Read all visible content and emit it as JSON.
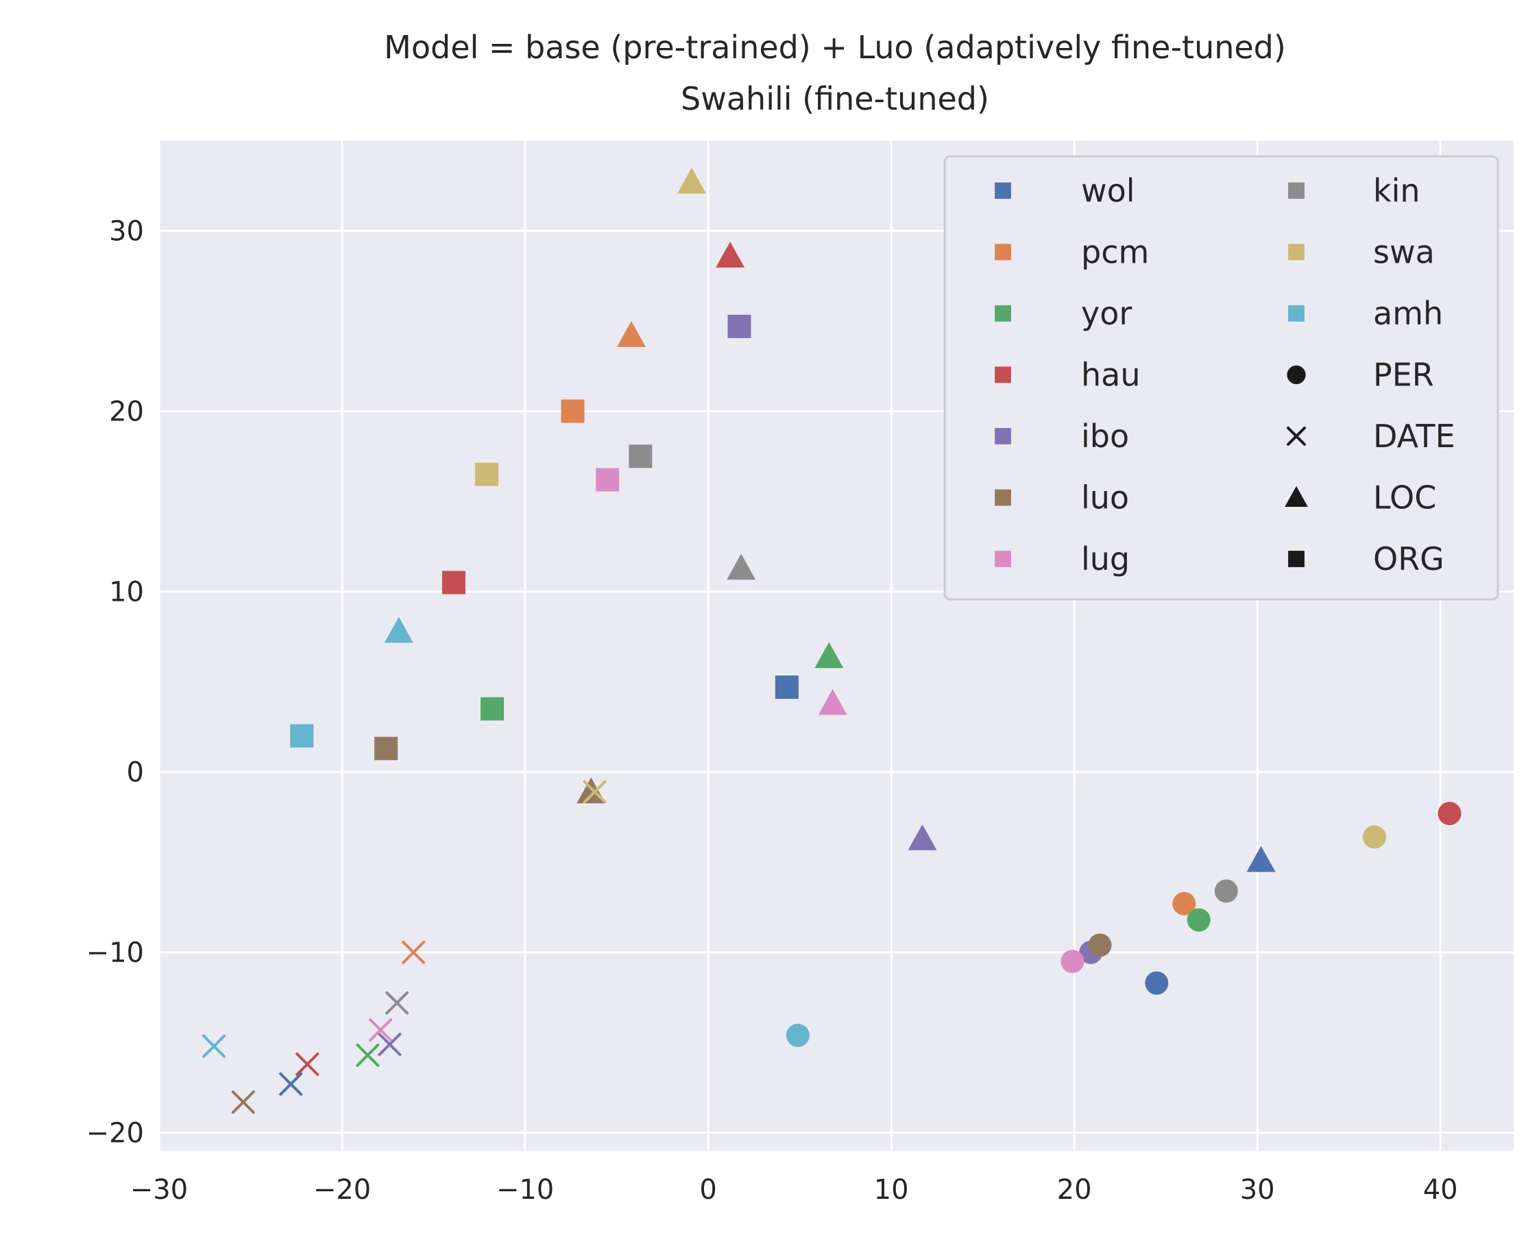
{
  "chart_data": {
    "type": "scatter",
    "title": "Model = base (pre-trained) + Luo (adaptively fine-tuned)",
    "subtitle": "Swahili (fine-tuned)",
    "xlabel": "",
    "ylabel": "",
    "xlim": [
      -30,
      44
    ],
    "ylim": [
      -21,
      35
    ],
    "xticks": [
      -30,
      -20,
      -10,
      0,
      10,
      20,
      30,
      40
    ],
    "yticks": [
      -20,
      -10,
      0,
      10,
      20,
      30
    ],
    "xtick_labels": [
      "−30",
      "−20",
      "−10",
      "0",
      "10",
      "20",
      "30",
      "40"
    ],
    "ytick_labels": [
      "−20",
      "−10",
      "0",
      "10",
      "20",
      "30"
    ],
    "grid": true,
    "legend_position": "top-right",
    "languages": [
      {
        "name": "wol",
        "color": "#4c72b0"
      },
      {
        "name": "pcm",
        "color": "#dd8452"
      },
      {
        "name": "yor",
        "color": "#55a868"
      },
      {
        "name": "hau",
        "color": "#c44e52"
      },
      {
        "name": "ibo",
        "color": "#8172b3"
      },
      {
        "name": "luo",
        "color": "#937860"
      },
      {
        "name": "lug",
        "color": "#da8bc3"
      },
      {
        "name": "kin",
        "color": "#8c8c8c"
      },
      {
        "name": "swa",
        "color": "#ccb974"
      },
      {
        "name": "amh",
        "color": "#64b5cd"
      }
    ],
    "entity_types": [
      {
        "name": "PER",
        "marker": "circle"
      },
      {
        "name": "DATE",
        "marker": "x"
      },
      {
        "name": "LOC",
        "marker": "triangle"
      },
      {
        "name": "ORG",
        "marker": "square"
      }
    ],
    "points": [
      {
        "lang": "wol",
        "entity": "PER",
        "x": 24.5,
        "y": -11.7
      },
      {
        "lang": "wol",
        "entity": "DATE",
        "x": -22.8,
        "y": -17.3
      },
      {
        "lang": "wol",
        "entity": "LOC",
        "x": 30.2,
        "y": -4.9
      },
      {
        "lang": "wol",
        "entity": "ORG",
        "x": 4.3,
        "y": 4.7
      },
      {
        "lang": "pcm",
        "entity": "PER",
        "x": 26.0,
        "y": -7.3
      },
      {
        "lang": "pcm",
        "entity": "DATE",
        "x": -16.1,
        "y": -10.0
      },
      {
        "lang": "pcm",
        "entity": "LOC",
        "x": -4.2,
        "y": 24.2
      },
      {
        "lang": "pcm",
        "entity": "ORG",
        "x": -7.4,
        "y": 20.0
      },
      {
        "lang": "yor",
        "entity": "PER",
        "x": 26.8,
        "y": -8.2
      },
      {
        "lang": "yor",
        "entity": "DATE",
        "x": -18.6,
        "y": -15.7
      },
      {
        "lang": "yor",
        "entity": "LOC",
        "x": 6.6,
        "y": 6.4
      },
      {
        "lang": "yor",
        "entity": "ORG",
        "x": -11.8,
        "y": 3.5
      },
      {
        "lang": "hau",
        "entity": "PER",
        "x": 40.5,
        "y": -2.3
      },
      {
        "lang": "hau",
        "entity": "DATE",
        "x": -21.9,
        "y": -16.2
      },
      {
        "lang": "hau",
        "entity": "LOC",
        "x": 1.2,
        "y": 28.6
      },
      {
        "lang": "hau",
        "entity": "ORG",
        "x": -13.9,
        "y": 10.5
      },
      {
        "lang": "ibo",
        "entity": "PER",
        "x": 20.9,
        "y": -10.0
      },
      {
        "lang": "ibo",
        "entity": "DATE",
        "x": -17.4,
        "y": -15.1
      },
      {
        "lang": "ibo",
        "entity": "LOC",
        "x": 11.7,
        "y": -3.7
      },
      {
        "lang": "ibo",
        "entity": "ORG",
        "x": 1.7,
        "y": 24.7
      },
      {
        "lang": "luo",
        "entity": "PER",
        "x": 21.4,
        "y": -9.6
      },
      {
        "lang": "luo",
        "entity": "DATE",
        "x": -25.4,
        "y": -18.3
      },
      {
        "lang": "luo",
        "entity": "LOC",
        "x": -6.4,
        "y": -1.1
      },
      {
        "lang": "luo",
        "entity": "ORG",
        "x": -17.6,
        "y": 1.3
      },
      {
        "lang": "lug",
        "entity": "PER",
        "x": 19.9,
        "y": -10.5
      },
      {
        "lang": "lug",
        "entity": "DATE",
        "x": -17.9,
        "y": -14.3
      },
      {
        "lang": "lug",
        "entity": "LOC",
        "x": 6.8,
        "y": 3.8
      },
      {
        "lang": "lug",
        "entity": "ORG",
        "x": -5.5,
        "y": 16.2
      },
      {
        "lang": "kin",
        "entity": "PER",
        "x": 28.3,
        "y": -6.6
      },
      {
        "lang": "kin",
        "entity": "DATE",
        "x": -17.0,
        "y": -12.8
      },
      {
        "lang": "kin",
        "entity": "LOC",
        "x": 1.8,
        "y": 11.3
      },
      {
        "lang": "kin",
        "entity": "ORG",
        "x": -3.7,
        "y": 17.5
      },
      {
        "lang": "swa",
        "entity": "PER",
        "x": 36.4,
        "y": -3.6
      },
      {
        "lang": "swa",
        "entity": "DATE",
        "x": -6.2,
        "y": -1.1
      },
      {
        "lang": "swa",
        "entity": "LOC",
        "x": -0.9,
        "y": 32.7
      },
      {
        "lang": "swa",
        "entity": "ORG",
        "x": -12.1,
        "y": 16.5
      },
      {
        "lang": "amh",
        "entity": "PER",
        "x": 4.9,
        "y": -14.6
      },
      {
        "lang": "amh",
        "entity": "DATE",
        "x": -27.0,
        "y": -15.2
      },
      {
        "lang": "amh",
        "entity": "LOC",
        "x": -16.9,
        "y": 7.8
      },
      {
        "lang": "amh",
        "entity": "ORG",
        "x": -22.2,
        "y": 2.0
      }
    ]
  }
}
